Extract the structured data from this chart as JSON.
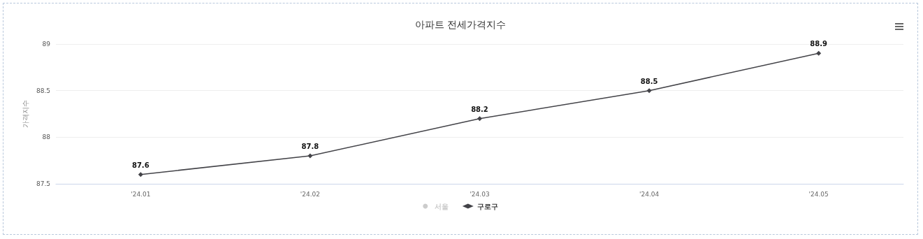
{
  "chart_data": {
    "type": "line",
    "title": "아파트 전세가격지수",
    "ylabel": "가격지수",
    "categories": [
      "'24.01",
      "'24.02",
      "'24.03",
      "'24.04",
      "'24.05"
    ],
    "series": [
      {
        "name": "서울",
        "color": "#cccccc",
        "marker": "circle",
        "values": [
          null,
          null,
          null,
          null,
          null
        ]
      },
      {
        "name": "구로구",
        "color": "#434348",
        "marker": "diamond",
        "values": [
          87.6,
          87.8,
          88.2,
          88.5,
          88.9
        ]
      }
    ],
    "ylim": [
      87.5,
      89
    ],
    "yticks": [
      87.5,
      88,
      88.5,
      89
    ],
    "grid": "y",
    "legend": "bottom",
    "data_labels": true
  }
}
